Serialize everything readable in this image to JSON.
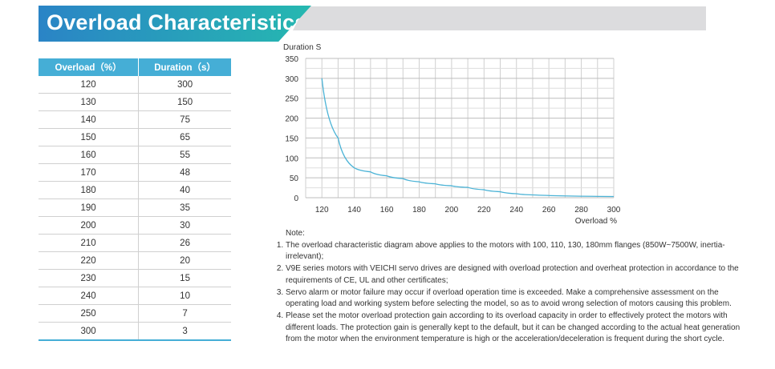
{
  "title": "Overload Characteristics",
  "table": {
    "headers": [
      "Overload（%）",
      "Duration（s）"
    ],
    "rows": [
      [
        "120",
        "300"
      ],
      [
        "130",
        "150"
      ],
      [
        "140",
        "75"
      ],
      [
        "150",
        "65"
      ],
      [
        "160",
        "55"
      ],
      [
        "170",
        "48"
      ],
      [
        "180",
        "40"
      ],
      [
        "190",
        "35"
      ],
      [
        "200",
        "30"
      ],
      [
        "210",
        "26"
      ],
      [
        "220",
        "20"
      ],
      [
        "230",
        "15"
      ],
      [
        "240",
        "10"
      ],
      [
        "250",
        "7"
      ],
      [
        "300",
        "3"
      ]
    ]
  },
  "chart_data": {
    "type": "line",
    "title": "",
    "ylabel": "Duration S",
    "xlabel": "Overload %",
    "x": [
      120,
      130,
      140,
      150,
      160,
      170,
      180,
      190,
      200,
      210,
      220,
      230,
      240,
      250,
      300
    ],
    "series": [
      {
        "name": "Duration",
        "values": [
          300,
          150,
          75,
          65,
          55,
          48,
          40,
          35,
          30,
          26,
          20,
          15,
          10,
          7,
          3
        ]
      }
    ],
    "xlim": [
      110,
      300
    ],
    "ylim": [
      0,
      350
    ],
    "xticks": [
      120,
      140,
      160,
      180,
      200,
      220,
      240,
      260,
      280,
      300
    ],
    "yticks": [
      0,
      50,
      100,
      150,
      200,
      250,
      300,
      350
    ],
    "grid": true,
    "color": "#4bb3d6"
  },
  "notes": {
    "heading": "Note:",
    "items": [
      "The overload characteristic diagram above applies to the motors with 100, 110, 130, 180mm flanges (850W~7500W, inertia-irrelevant);",
      "V9E series motors with VEICHI servo drives are designed with overload protection and overheat protection in accordance to the requirements of CE, UL and other certificates;",
      "Servo alarm or motor failure may occur if overload operation time is exceeded. Make a comprehensive assessment on the operating load and working system before selecting the model, so as to avoid wrong selection of motors causing this problem.",
      "Please set the motor overload protection gain according to its overload capacity in order to effectively protect the motors with different loads. The protection gain is generally kept to the default, but it can be changed according to the actual heat generation from the motor when the environment temperature is high or the acceleration/deceleration is frequent during the short cycle."
    ]
  }
}
